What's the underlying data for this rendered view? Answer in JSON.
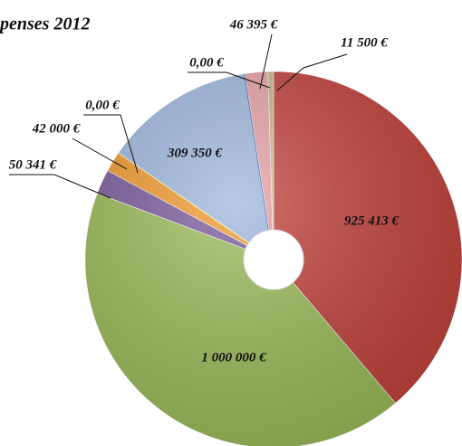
{
  "chart_data": {
    "type": "pie",
    "title": "penses 2012",
    "categories": [
      null,
      null,
      null,
      null,
      null,
      null,
      null,
      null,
      null
    ],
    "values": [
      925413,
      1000000,
      50341,
      42000,
      0,
      309350,
      0,
      46395,
      11500
    ],
    "value_labels": [
      "925 413 €",
      "1 000 000 €",
      "50 341 €",
      "42 000 €",
      "0,00 €",
      "309 350 €",
      "0,00 €",
      "46 395 €",
      "11 500 €"
    ],
    "colors": [
      "#c2423b",
      "#9cbc5a",
      "#7b5c9e",
      "#f29b30",
      "#f3d24a",
      "#9fb9df",
      "#1f4e9c",
      "#e7a2a8",
      "#cbb88c"
    ],
    "donut": true
  }
}
